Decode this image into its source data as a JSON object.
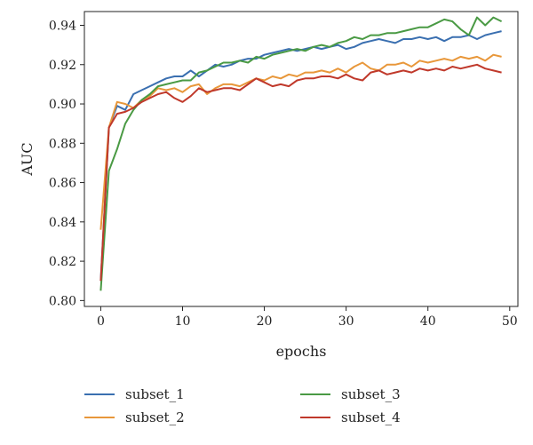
{
  "chart_data": {
    "type": "line",
    "title": "",
    "xlabel": "epochs",
    "ylabel": "AUC",
    "xlim": [
      -2,
      51
    ],
    "ylim": [
      0.797,
      0.947
    ],
    "xticks": [
      0,
      10,
      20,
      30,
      40,
      50
    ],
    "yticks": [
      0.8,
      0.82,
      0.84,
      0.86,
      0.88,
      0.9,
      0.92,
      0.94
    ],
    "grid": false,
    "legend": "below",
    "x": [
      0,
      1,
      2,
      3,
      4,
      5,
      6,
      7,
      8,
      9,
      10,
      11,
      12,
      13,
      14,
      15,
      16,
      17,
      18,
      19,
      20,
      21,
      22,
      23,
      24,
      25,
      26,
      27,
      28,
      29,
      30,
      31,
      32,
      33,
      34,
      35,
      36,
      37,
      38,
      39,
      40,
      41,
      42,
      43,
      44,
      45,
      46,
      47,
      48,
      49
    ],
    "series": [
      {
        "name": "subset_1",
        "color": "#3a6fb0",
        "values": [
          0.81,
          0.888,
          0.899,
          0.897,
          0.905,
          0.907,
          0.909,
          0.911,
          0.913,
          0.914,
          0.914,
          0.917,
          0.914,
          0.917,
          0.92,
          0.919,
          0.92,
          0.922,
          0.923,
          0.923,
          0.925,
          0.926,
          0.927,
          0.928,
          0.927,
          0.928,
          0.929,
          0.928,
          0.929,
          0.93,
          0.928,
          0.929,
          0.931,
          0.932,
          0.933,
          0.932,
          0.931,
          0.933,
          0.933,
          0.934,
          0.933,
          0.934,
          0.932,
          0.934,
          0.934,
          0.935,
          0.933,
          0.935,
          0.936,
          0.937
        ]
      },
      {
        "name": "subset_2",
        "color": "#e8973a",
        "values": [
          0.836,
          0.888,
          0.901,
          0.9,
          0.898,
          0.902,
          0.904,
          0.908,
          0.907,
          0.908,
          0.906,
          0.909,
          0.91,
          0.905,
          0.908,
          0.91,
          0.91,
          0.909,
          0.911,
          0.913,
          0.912,
          0.914,
          0.913,
          0.915,
          0.914,
          0.916,
          0.916,
          0.917,
          0.916,
          0.918,
          0.916,
          0.919,
          0.921,
          0.918,
          0.917,
          0.92,
          0.92,
          0.921,
          0.919,
          0.922,
          0.921,
          0.922,
          0.923,
          0.922,
          0.924,
          0.923,
          0.924,
          0.922,
          0.925,
          0.924
        ]
      },
      {
        "name": "subset_3",
        "color": "#4a9a44",
        "values": [
          0.805,
          0.866,
          0.877,
          0.89,
          0.897,
          0.902,
          0.905,
          0.909,
          0.91,
          0.911,
          0.912,
          0.912,
          0.916,
          0.917,
          0.919,
          0.921,
          0.921,
          0.922,
          0.921,
          0.924,
          0.923,
          0.925,
          0.926,
          0.927,
          0.928,
          0.927,
          0.929,
          0.93,
          0.929,
          0.931,
          0.932,
          0.934,
          0.933,
          0.935,
          0.935,
          0.936,
          0.936,
          0.937,
          0.938,
          0.939,
          0.939,
          0.941,
          0.943,
          0.942,
          0.938,
          0.935,
          0.944,
          0.94,
          0.944,
          0.942
        ]
      },
      {
        "name": "subset_4",
        "color": "#c0392b",
        "values": [
          0.81,
          0.888,
          0.895,
          0.896,
          0.898,
          0.901,
          0.903,
          0.905,
          0.906,
          0.903,
          0.901,
          0.904,
          0.908,
          0.906,
          0.907,
          0.908,
          0.908,
          0.907,
          0.91,
          0.913,
          0.911,
          0.909,
          0.91,
          0.909,
          0.912,
          0.913,
          0.913,
          0.914,
          0.914,
          0.913,
          0.915,
          0.913,
          0.912,
          0.916,
          0.917,
          0.915,
          0.916,
          0.917,
          0.916,
          0.918,
          0.917,
          0.918,
          0.917,
          0.919,
          0.918,
          0.919,
          0.92,
          0.918,
          0.917,
          0.916
        ]
      }
    ]
  }
}
